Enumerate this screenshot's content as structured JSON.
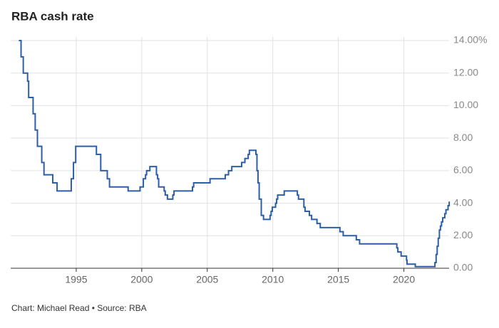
{
  "chart_data": {
    "type": "line",
    "step": "post",
    "title": "RBA cash rate",
    "source": "Chart: Michael Read • Source: RBA",
    "x": [
      1990.62,
      1990.79,
      1990.96,
      1991.29,
      1991.37,
      1991.71,
      1991.87,
      1992.04,
      1992.37,
      1992.54,
      1993.21,
      1993.54,
      1994.62,
      1994.79,
      1994.96,
      1996.54,
      1996.87,
      1997.37,
      1997.54,
      1998.96,
      1999.87,
      2000.12,
      2000.29,
      2000.37,
      2000.62,
      2001.12,
      2001.21,
      2001.29,
      2001.71,
      2001.79,
      2001.96,
      2002.37,
      2002.46,
      2003.87,
      2003.96,
      2005.21,
      2006.37,
      2006.62,
      2006.87,
      2007.62,
      2007.87,
      2008.12,
      2008.21,
      2008.71,
      2008.79,
      2008.87,
      2008.96,
      2009.12,
      2009.29,
      2009.79,
      2009.87,
      2009.96,
      2010.21,
      2010.29,
      2010.37,
      2010.87,
      2011.87,
      2011.96,
      2012.37,
      2012.46,
      2012.79,
      2012.96,
      2013.37,
      2013.62,
      2015.12,
      2015.37,
      2016.37,
      2016.62,
      2019.46,
      2019.54,
      2019.79,
      2020.2,
      2020.24,
      2020.87,
      2022.37,
      2022.46,
      2022.54,
      2022.62,
      2022.71,
      2022.79,
      2022.87,
      2022.96,
      2023.12,
      2023.21,
      2023.37,
      2023.46
    ],
    "series": [
      {
        "name": "RBA cash rate",
        "color": "#2d5ea8",
        "values": [
          14.0,
          13.0,
          12.0,
          11.5,
          10.5,
          9.5,
          8.5,
          7.5,
          6.5,
          5.75,
          5.25,
          4.75,
          5.5,
          6.5,
          7.5,
          7.0,
          6.0,
          5.5,
          5.0,
          4.75,
          5.0,
          5.5,
          5.75,
          6.0,
          6.25,
          5.75,
          5.5,
          5.0,
          4.75,
          4.5,
          4.25,
          4.5,
          4.75,
          5.0,
          5.25,
          5.5,
          5.75,
          6.0,
          6.25,
          6.5,
          6.75,
          7.0,
          7.25,
          7.0,
          6.0,
          5.25,
          4.25,
          3.25,
          3.0,
          3.25,
          3.5,
          3.75,
          4.0,
          4.25,
          4.5,
          4.75,
          4.5,
          4.25,
          3.75,
          3.5,
          3.25,
          3.0,
          2.75,
          2.5,
          2.25,
          2.0,
          1.75,
          1.5,
          1.25,
          1.0,
          0.75,
          0.5,
          0.25,
          0.1,
          0.35,
          0.85,
          1.35,
          1.85,
          2.35,
          2.6,
          2.85,
          3.1,
          3.35,
          3.6,
          3.85,
          4.1
        ]
      }
    ],
    "xlim": [
      1990,
      2023.45
    ],
    "xticks": [
      1995,
      2000,
      2005,
      2010,
      2015,
      2020
    ],
    "ylim": [
      0,
      14
    ],
    "yticks": [
      {
        "value": 0,
        "label": "0.00"
      },
      {
        "value": 2,
        "label": "2.00"
      },
      {
        "value": 4,
        "label": "4.00"
      },
      {
        "value": 6,
        "label": "6.00"
      },
      {
        "value": 8,
        "label": "8.00"
      },
      {
        "value": 10,
        "label": "10.00"
      },
      {
        "value": 12,
        "label": "12.00"
      },
      {
        "value": 14,
        "label": "14.00%"
      }
    ],
    "grid": true
  }
}
